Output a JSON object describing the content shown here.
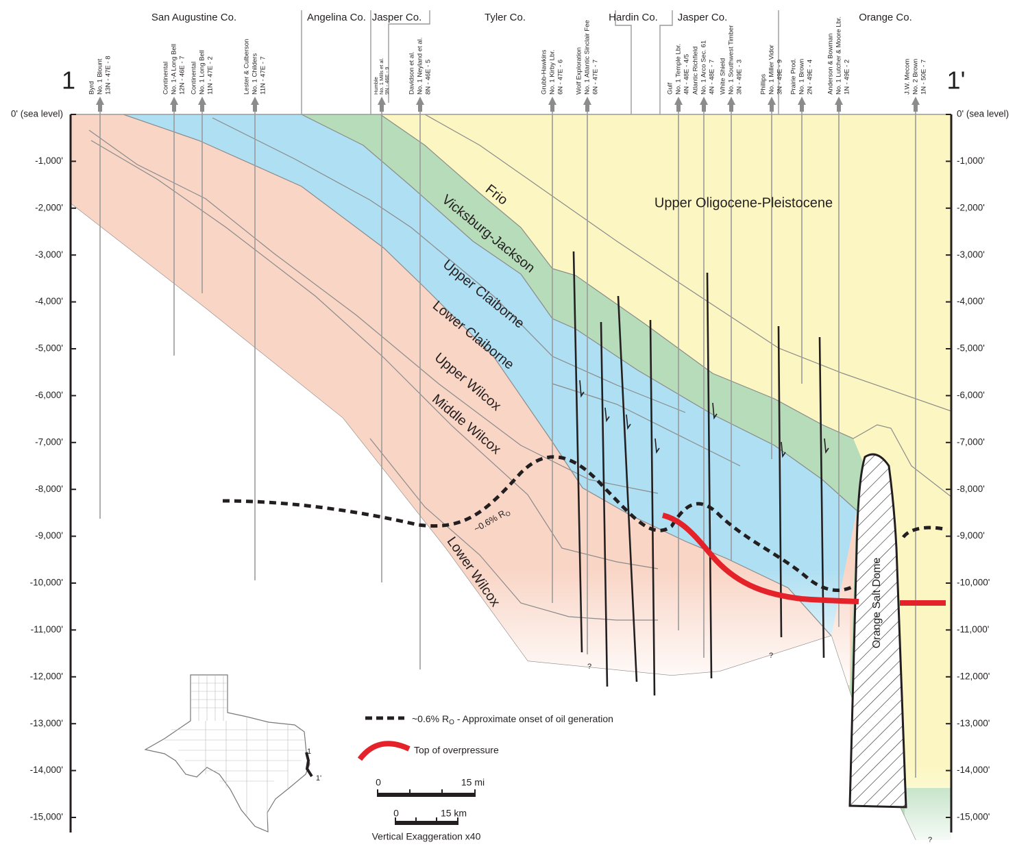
{
  "section": {
    "start_label": "1",
    "end_label": "1'"
  },
  "counties": [
    "San Augustine Co.",
    "Angelina Co.",
    "Jasper Co.",
    "Tyler Co.",
    "Hardin Co.",
    "Jasper Co.",
    "Orange Co."
  ],
  "wells": [
    {
      "lines": [
        "Byrd",
        "No. 1 Blount",
        "13N - 47E - 8"
      ]
    },
    {
      "lines": [
        "Continental",
        "No. 1-A Long Bell",
        "12N - 46E - 7"
      ]
    },
    {
      "lines": [
        "Continental",
        "No. 1 Long Bell",
        "11N - 47E - 2"
      ]
    },
    {
      "lines": [
        "Lester & Culberson",
        "No. 1 Childers",
        "11N - 47E - 7"
      ]
    },
    {
      "lines": [
        "Humble",
        "No. 1 Mills et al.",
        "9N - 46E - 9"
      ]
    },
    {
      "lines": [
        "Davidson et al.",
        "No. 1 Neyland et al.",
        "8N - 46E - 5"
      ]
    },
    {
      "lines": [
        "Grubb-Hawkins",
        "No. 1 Kirby Lbr.",
        "6N - 47E - 6"
      ]
    },
    {
      "lines": [
        "Wolf Exploration",
        "No. 1 Atlantic Sinclair Fee",
        "6N - 47E - 7"
      ]
    },
    {
      "lines": [
        "Gulf",
        "No. 1 Temple Lbr.",
        "4N - 48E - 4/5"
      ]
    },
    {
      "lines": [
        "Atlantic Richfield",
        "No. 1 Arco Sec. 61",
        "4N - 48E - 7"
      ]
    },
    {
      "lines": [
        "White Shield",
        "No. 1 Southwest Timber",
        "3N - 49E - 3"
      ]
    },
    {
      "lines": [
        "Phillips",
        "No. 1 Miller Vidor",
        "3N - 49E - 9"
      ]
    },
    {
      "lines": [
        "Prairie Prod.",
        "No. 1 Brown",
        "2N - 49E - 4"
      ]
    },
    {
      "lines": [
        "Anderson & Bowman",
        "No. 1 Lutcher & Moore Lbr.",
        "1N - 49E - 2"
      ]
    },
    {
      "lines": [
        "J.W. Mecom",
        "No. 2 Brown",
        "1N - 50E - 7"
      ]
    }
  ],
  "depth_axis": {
    "ticks": [
      {
        "value": 0,
        "label": "0' (sea level)"
      },
      {
        "value": -1000,
        "label": "-1,000'"
      },
      {
        "value": -2000,
        "label": "-2,000'"
      },
      {
        "value": -3000,
        "label": "-3,000'"
      },
      {
        "value": -4000,
        "label": "-4,000'"
      },
      {
        "value": -5000,
        "label": "-5,000'"
      },
      {
        "value": -6000,
        "label": "-6,000'"
      },
      {
        "value": -7000,
        "label": "-7,000'"
      },
      {
        "value": -8000,
        "label": "-8,000'"
      },
      {
        "value": -9000,
        "label": "-9,000'"
      },
      {
        "value": -10000,
        "label": "-10,000'"
      },
      {
        "value": -11000,
        "label": "-11,000'"
      },
      {
        "value": -12000,
        "label": "-12,000'"
      },
      {
        "value": -13000,
        "label": "-13,000'"
      },
      {
        "value": -14000,
        "label": "-14,000'"
      },
      {
        "value": -15000,
        "label": "-15,000'"
      }
    ]
  },
  "formations": [
    "Frio",
    "Vicksburg-Jackson",
    "Upper Claiborne",
    "Lower Claiborne",
    "Upper Wilcox",
    "Middle Wilcox",
    "Lower Wilcox",
    "Upper Oligocene-Pleistocene"
  ],
  "salt_dome": "Orange Salt Dome",
  "ro_label": {
    "text": "~0.6% R",
    "sub": "O"
  },
  "unknown_marks": [
    "?",
    "?",
    "?"
  ],
  "legend": {
    "ro": {
      "text": "~0.6% R",
      "sub": "O",
      "rest": "- Approximate onset of oil generation"
    },
    "overpressure": "Top of overpressure"
  },
  "scale": {
    "mi_start": "0",
    "mi_end": "15 mi",
    "km_start": "0",
    "km_end": "15 km",
    "exaggeration": "Vertical Exaggeration x40"
  },
  "locator_map": {
    "start_label": "1",
    "end_label": "1'"
  }
}
